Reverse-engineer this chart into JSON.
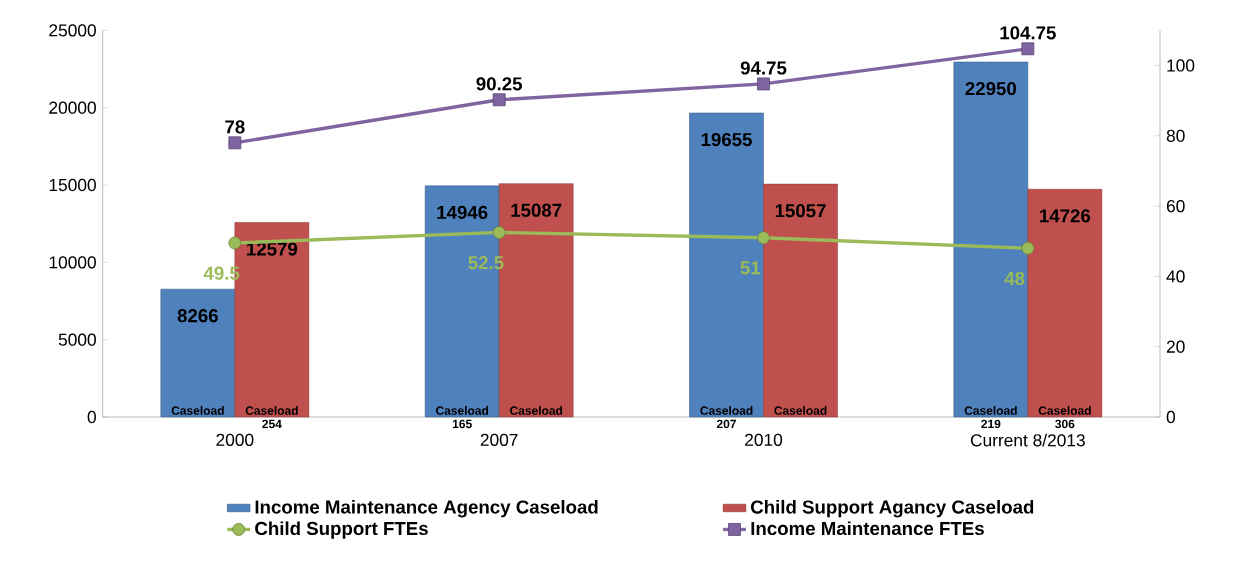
{
  "chart_data": {
    "type": "bar",
    "categories": [
      "2000",
      "2007",
      "2010",
      "Current 8/2013"
    ],
    "series": [
      {
        "name": "Income Maintenance Agency Caseload",
        "color": "#4f81bd",
        "values": [
          8266,
          14946,
          19655,
          22950
        ]
      },
      {
        "name": "Child Support Agancy Caseload",
        "color": "#c0504d",
        "values": [
          12579,
          15087,
          15057,
          14726
        ]
      },
      {
        "name": "Child Support FTEs",
        "type": "line",
        "axis": "y2",
        "marker": "circle",
        "color": "#9bbb59",
        "values": [
          49.5,
          52.5,
          51,
          48
        ]
      },
      {
        "name": "Income Maintenance FTEs",
        "type": "line",
        "axis": "y2",
        "marker": "square",
        "color": "#8064a2",
        "values": [
          78,
          90.25,
          94.75,
          104.75
        ]
      }
    ],
    "ylim": [
      0,
      25000
    ],
    "yticks": [
      0,
      5000,
      10000,
      15000,
      20000,
      25000
    ],
    "y2lim": [
      0,
      110
    ],
    "y2ticks": [
      0,
      20,
      40,
      60,
      80,
      100
    ],
    "data_labels": true,
    "legend": "bottom",
    "annotations": [
      "Caseload",
      "Caseload 254",
      "Caseload 165",
      "Caseload",
      "Caseload 207",
      "Caseload",
      "Caseload 219",
      "Caseload 306"
    ]
  }
}
